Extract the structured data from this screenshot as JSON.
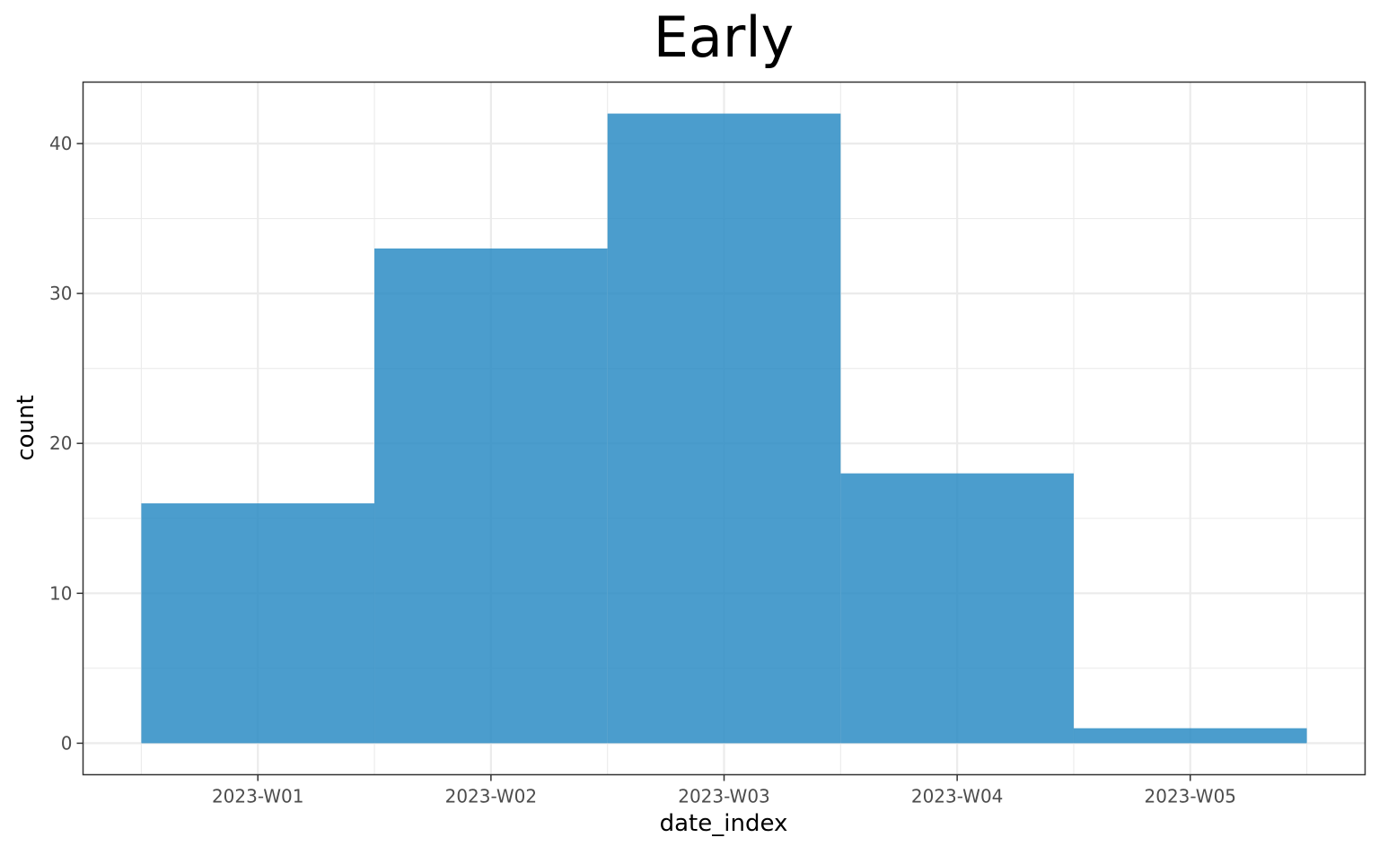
{
  "chart_data": {
    "type": "bar",
    "title": "Early",
    "xlabel": "date_index",
    "ylabel": "count",
    "categories": [
      "2023-W01",
      "2023-W02",
      "2023-W03",
      "2023-W04",
      "2023-W05"
    ],
    "values": [
      16,
      33,
      42,
      18,
      1
    ],
    "ylim": [
      -2.1,
      44.1
    ],
    "yticks": [
      0,
      10,
      20,
      30,
      40
    ],
    "grid": true,
    "legend": "none",
    "bar_color": "#2b8cc4",
    "bar_opacity": 0.85
  }
}
